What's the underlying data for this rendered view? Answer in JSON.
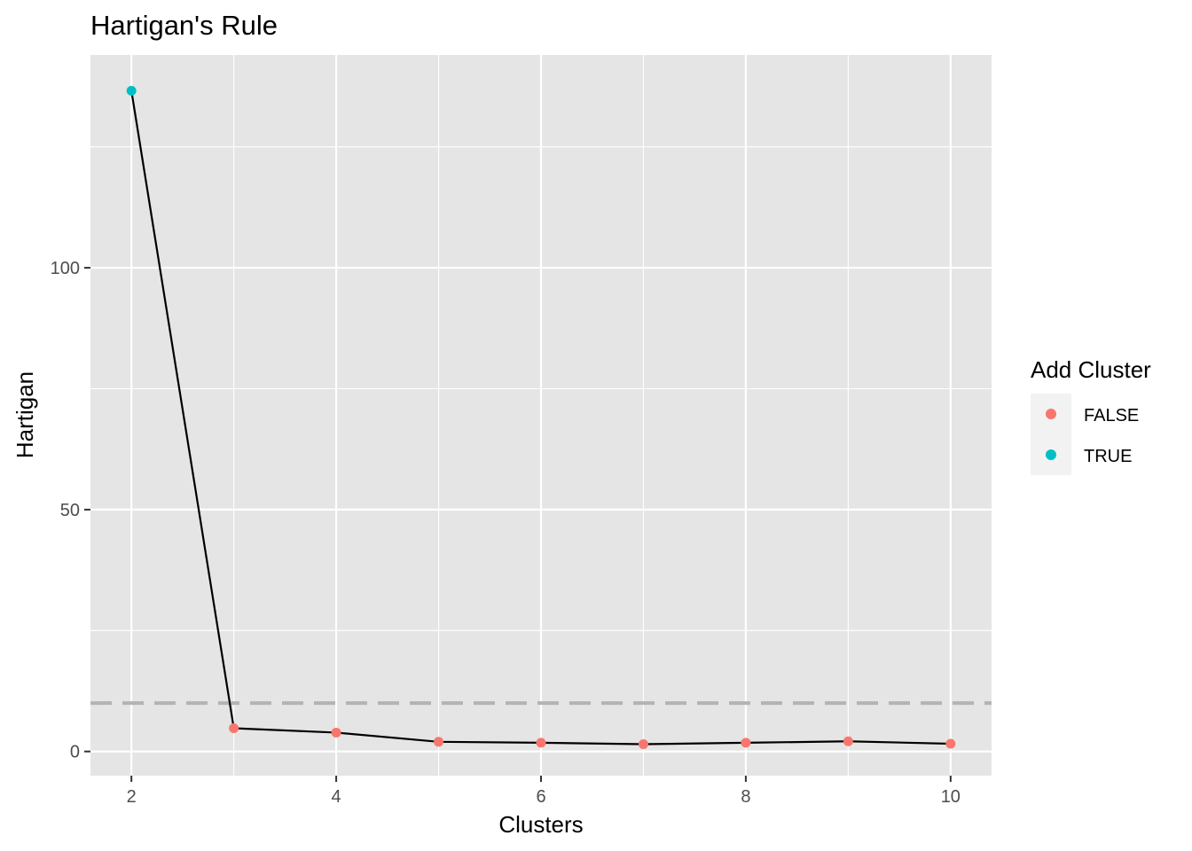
{
  "chart_data": {
    "type": "line",
    "title": "Hartigan's Rule",
    "xlabel": "Clusters",
    "ylabel": "Hartigan",
    "x": [
      2,
      3,
      4,
      5,
      6,
      7,
      8,
      9,
      10
    ],
    "y": [
      136.6,
      4.8,
      3.9,
      2.0,
      1.8,
      1.5,
      1.8,
      2.1,
      1.6
    ],
    "add_cluster": [
      true,
      false,
      false,
      false,
      false,
      false,
      false,
      false,
      false
    ],
    "xlim": [
      1.6,
      10.4
    ],
    "ylim": [
      -5,
      144
    ],
    "x_ticks": [
      2,
      4,
      6,
      8,
      10
    ],
    "x_tick_labels": [
      "2",
      "4",
      "6",
      "8",
      "10"
    ],
    "y_ticks": [
      0,
      50,
      100
    ],
    "y_tick_labels": [
      "0",
      "50",
      "100"
    ],
    "reference_line": {
      "y": 10,
      "style": "dashed",
      "color": "#b3b3b3"
    },
    "line_color": "#000000",
    "grid": true,
    "panel_background": "#e5e5e5",
    "legend": {
      "title": "Add Cluster",
      "position": "right",
      "entries": [
        {
          "label": "FALSE",
          "color": "#f8766d"
        },
        {
          "label": "TRUE",
          "color": "#00bfc4"
        }
      ]
    }
  }
}
